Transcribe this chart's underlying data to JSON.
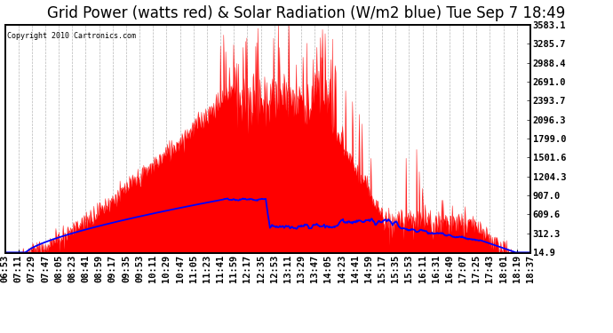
{
  "title": "Grid Power (watts red) & Solar Radiation (W/m2 blue) Tue Sep 7 18:49",
  "copyright": "Copyright 2010 Cartronics.com",
  "yticks": [
    14.9,
    312.3,
    609.6,
    907.0,
    1204.3,
    1501.6,
    1799.0,
    2096.3,
    2393.7,
    2691.0,
    2988.4,
    3285.7,
    3583.1
  ],
  "ymin": 0,
  "ymax": 3583.1,
  "xtick_labels": [
    "06:53",
    "07:11",
    "07:29",
    "07:47",
    "08:05",
    "08:23",
    "08:41",
    "08:59",
    "09:17",
    "09:35",
    "09:53",
    "10:11",
    "10:29",
    "10:47",
    "11:05",
    "11:23",
    "11:41",
    "11:59",
    "12:17",
    "12:35",
    "12:53",
    "13:11",
    "13:29",
    "13:47",
    "14:05",
    "14:23",
    "14:41",
    "14:59",
    "15:17",
    "15:35",
    "15:53",
    "16:11",
    "16:31",
    "16:49",
    "17:07",
    "17:25",
    "17:43",
    "18:01",
    "18:19",
    "18:37"
  ],
  "background_color": "#ffffff",
  "plot_bg_color": "#ffffff",
  "grid_color": "#888888",
  "red_color": "#ff0000",
  "blue_color": "#0000ff",
  "title_fontsize": 12,
  "tick_fontsize": 7.5
}
